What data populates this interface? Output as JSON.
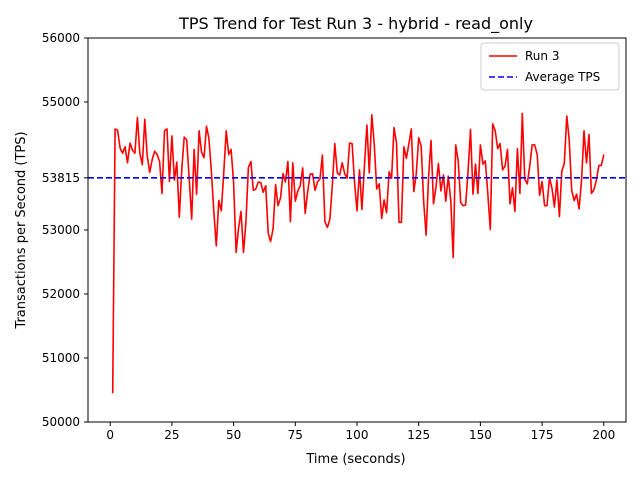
{
  "chart_data": {
    "type": "line",
    "title": "TPS Trend for Test Run 3 - hybrid - read_only",
    "xlabel": "Time (seconds)",
    "ylabel": "Transactions per Second (TPS)",
    "xlim": [
      -9,
      209
    ],
    "ylim": [
      50000,
      56000
    ],
    "xticks": [
      0,
      25,
      50,
      75,
      100,
      125,
      150,
      175,
      200
    ],
    "yticks": [
      50000,
      51000,
      52000,
      53000,
      53815,
      55000,
      56000
    ],
    "grid": false,
    "legend": {
      "position": "top-right",
      "entries": [
        "Run 3",
        "Average TPS"
      ]
    },
    "series": [
      {
        "name": "Run 3",
        "color": "#ff0000",
        "style": "solid",
        "x": [
          1,
          2,
          3,
          4,
          5,
          6,
          7,
          8,
          9,
          10,
          11,
          12,
          13,
          14,
          15,
          16,
          17,
          18,
          19,
          20,
          21,
          22,
          23,
          24,
          25,
          26,
          27,
          28,
          29,
          30,
          31,
          32,
          33,
          34,
          35,
          36,
          37,
          38,
          39,
          40,
          41,
          42,
          43,
          44,
          45,
          46,
          47,
          48,
          49,
          50,
          51,
          52,
          53,
          54,
          55,
          56,
          57,
          58,
          59,
          60,
          61,
          62,
          63,
          64,
          65,
          66,
          67,
          68,
          69,
          70,
          71,
          72,
          73,
          74,
          75,
          76,
          77,
          78,
          79,
          80,
          81,
          82,
          83,
          84,
          85,
          86,
          87,
          88,
          89,
          90,
          91,
          92,
          93,
          94,
          95,
          96,
          97,
          98,
          99,
          100,
          101,
          102,
          103,
          104,
          105,
          106,
          107,
          108,
          109,
          110,
          111,
          112,
          113,
          114,
          115,
          116,
          117,
          118,
          119,
          120,
          121,
          122,
          123,
          124,
          125,
          126,
          127,
          128,
          129,
          130,
          131,
          132,
          133,
          134,
          135,
          136,
          137,
          138,
          139,
          140,
          141,
          142,
          143,
          144,
          145,
          146,
          147,
          148,
          149,
          150,
          151,
          152,
          153,
          154,
          155,
          156,
          157,
          158,
          159,
          160,
          161,
          162,
          163,
          164,
          165,
          166,
          167,
          168,
          169,
          170,
          171,
          172,
          173,
          174,
          175,
          176,
          177,
          178,
          179,
          180,
          181,
          182,
          183,
          184,
          185,
          186,
          187,
          188,
          189,
          190,
          191,
          192,
          193,
          194,
          195,
          196,
          197,
          198,
          199,
          200
        ],
        "values": [
          50450,
          54580,
          54560,
          54280,
          54200,
          54300,
          54050,
          54360,
          54250,
          54200,
          54760,
          54200,
          54020,
          54730,
          54160,
          53900,
          54100,
          54230,
          54180,
          54070,
          53570,
          54550,
          54580,
          53760,
          54470,
          53780,
          54060,
          53200,
          53950,
          54450,
          54410,
          53800,
          53170,
          54260,
          53560,
          54550,
          54220,
          54130,
          54620,
          54430,
          53910,
          53270,
          52750,
          53460,
          53300,
          53880,
          54550,
          54180,
          54260,
          53740,
          52650,
          53020,
          53290,
          52650,
          53120,
          53980,
          54070,
          53620,
          53640,
          53750,
          53740,
          53590,
          53690,
          52950,
          52820,
          53020,
          53710,
          53380,
          53500,
          53880,
          53750,
          54070,
          53130,
          54050,
          53450,
          53610,
          53690,
          53970,
          53260,
          53590,
          53870,
          53880,
          53620,
          53750,
          53800,
          54170,
          53130,
          53040,
          53170,
          53690,
          54350,
          53890,
          53860,
          54050,
          53880,
          53810,
          54360,
          54350,
          53750,
          53300,
          53940,
          53320,
          53990,
          54640,
          53890,
          54800,
          54330,
          53640,
          53720,
          53180,
          53470,
          53270,
          53910,
          53810,
          54600,
          54360,
          53120,
          53120,
          54300,
          54120,
          54340,
          54580,
          53600,
          53870,
          54440,
          54310,
          53460,
          52920,
          53830,
          54400,
          53410,
          53670,
          54040,
          53610,
          53860,
          53450,
          53840,
          53450,
          52570,
          54330,
          54080,
          53430,
          53380,
          53390,
          53920,
          54570,
          53560,
          54030,
          53570,
          54330,
          54030,
          54080,
          53570,
          53010,
          54660,
          54550,
          54270,
          54350,
          53940,
          54000,
          54260,
          53410,
          53660,
          53290,
          54270,
          53570,
          54820,
          53790,
          53720,
          54010,
          54330,
          54330,
          54180,
          53540,
          53760,
          53380,
          53380,
          53820,
          53650,
          53360,
          53780,
          53210,
          53920,
          54040,
          54780,
          54410,
          53620,
          53460,
          53560,
          53330,
          53790,
          54550,
          54050,
          54490,
          53570,
          53630,
          53780,
          54010,
          54010,
          54180
        ]
      },
      {
        "name": "Average TPS",
        "color": "#0000ff",
        "style": "dashed",
        "constant": 53815
      }
    ]
  }
}
